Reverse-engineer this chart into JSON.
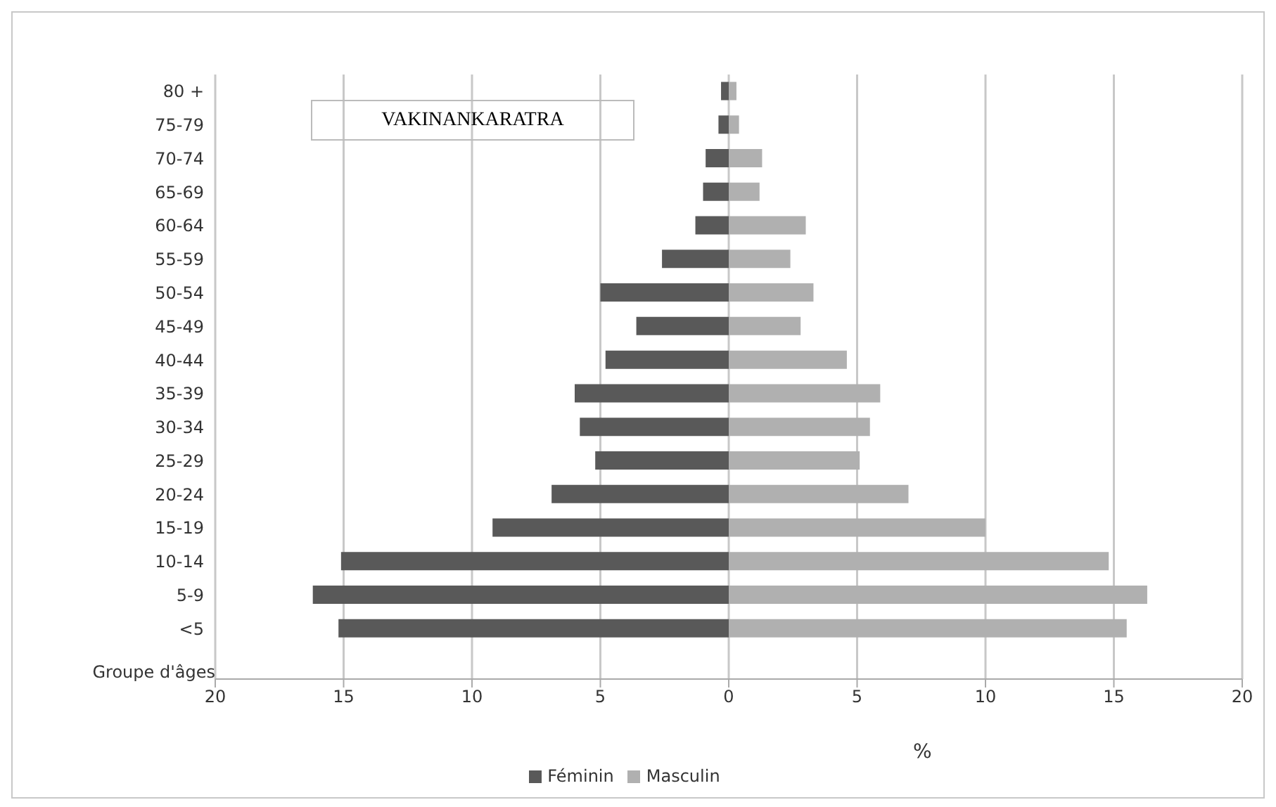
{
  "chart_data": {
    "type": "bar",
    "orientation": "horizontal",
    "stacked": true,
    "title": "VAKINANKARATRA",
    "xlabel": "%",
    "ylabel": "Groupe d'âges",
    "categories": [
      "80 +",
      "75-79",
      "70-74",
      "65-69",
      "60-64",
      "55-59",
      "50-54",
      "45-49",
      "40-44",
      "35-39",
      "30-34",
      "25-29",
      "20-24",
      "15-19",
      "10-14",
      "5-9",
      "<5"
    ],
    "series": [
      {
        "name": "Féminin",
        "color": "#595959",
        "values": [
          -0.3,
          -0.4,
          -0.9,
          -1.0,
          -1.3,
          -2.6,
          -5.0,
          -3.6,
          -4.8,
          -6.0,
          -5.8,
          -5.2,
          -6.9,
          -9.2,
          -15.1,
          -16.2,
          -15.2
        ]
      },
      {
        "name": "Masculin",
        "color": "#b0b0b0",
        "values": [
          0.3,
          0.4,
          1.3,
          1.2,
          3.0,
          2.4,
          3.3,
          2.8,
          4.6,
          5.9,
          5.5,
          5.1,
          7.0,
          10.0,
          14.8,
          16.3,
          15.5
        ]
      }
    ],
    "xlim": [
      -20,
      20
    ],
    "xticks": [
      {
        "value": -20,
        "label": "20"
      },
      {
        "value": -15,
        "label": "15"
      },
      {
        "value": -10,
        "label": "10"
      },
      {
        "value": -5,
        "label": "5"
      },
      0,
      5,
      10,
      15,
      20
    ],
    "grid": "x",
    "legend": "bottom"
  }
}
